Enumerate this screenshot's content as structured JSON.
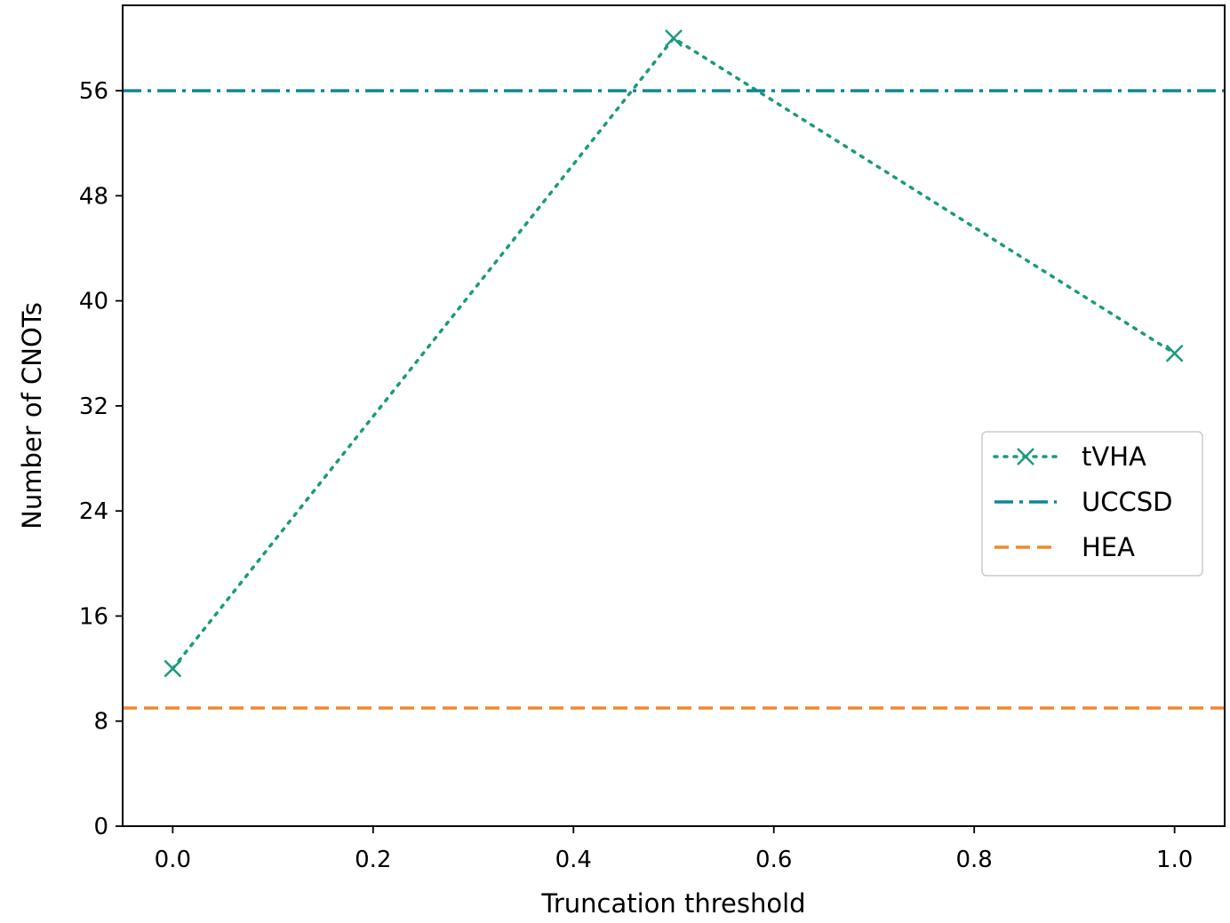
{
  "chart_data": {
    "type": "line",
    "xlabel": "Truncation threshold",
    "ylabel": "Number of CNOTs",
    "xlim": [
      -0.05,
      1.05
    ],
    "ylim": [
      0,
      62.5
    ],
    "xticks": [
      0.0,
      0.2,
      0.4,
      0.6,
      0.8,
      1.0
    ],
    "xtick_labels": [
      "0.0",
      "0.2",
      "0.4",
      "0.6",
      "0.8",
      "1.0"
    ],
    "yticks": [
      0,
      8,
      16,
      24,
      32,
      40,
      48,
      56
    ],
    "ytick_labels": [
      "0",
      "8",
      "16",
      "24",
      "32",
      "40",
      "48",
      "56"
    ],
    "grid": false,
    "legend_position": "center-right",
    "series": [
      {
        "name": "tVHA",
        "kind": "line",
        "style": "dotted",
        "marker": "x",
        "color": "#1b9a7c",
        "x": [
          0.0,
          0.5,
          1.0
        ],
        "y": [
          12,
          60,
          36
        ]
      },
      {
        "name": "UCCSD",
        "kind": "hline",
        "style": "dashdot",
        "color": "#0f8796",
        "y": 56
      },
      {
        "name": "HEA",
        "kind": "hline",
        "style": "dashed",
        "color": "#f0882a",
        "y": 9
      }
    ]
  }
}
